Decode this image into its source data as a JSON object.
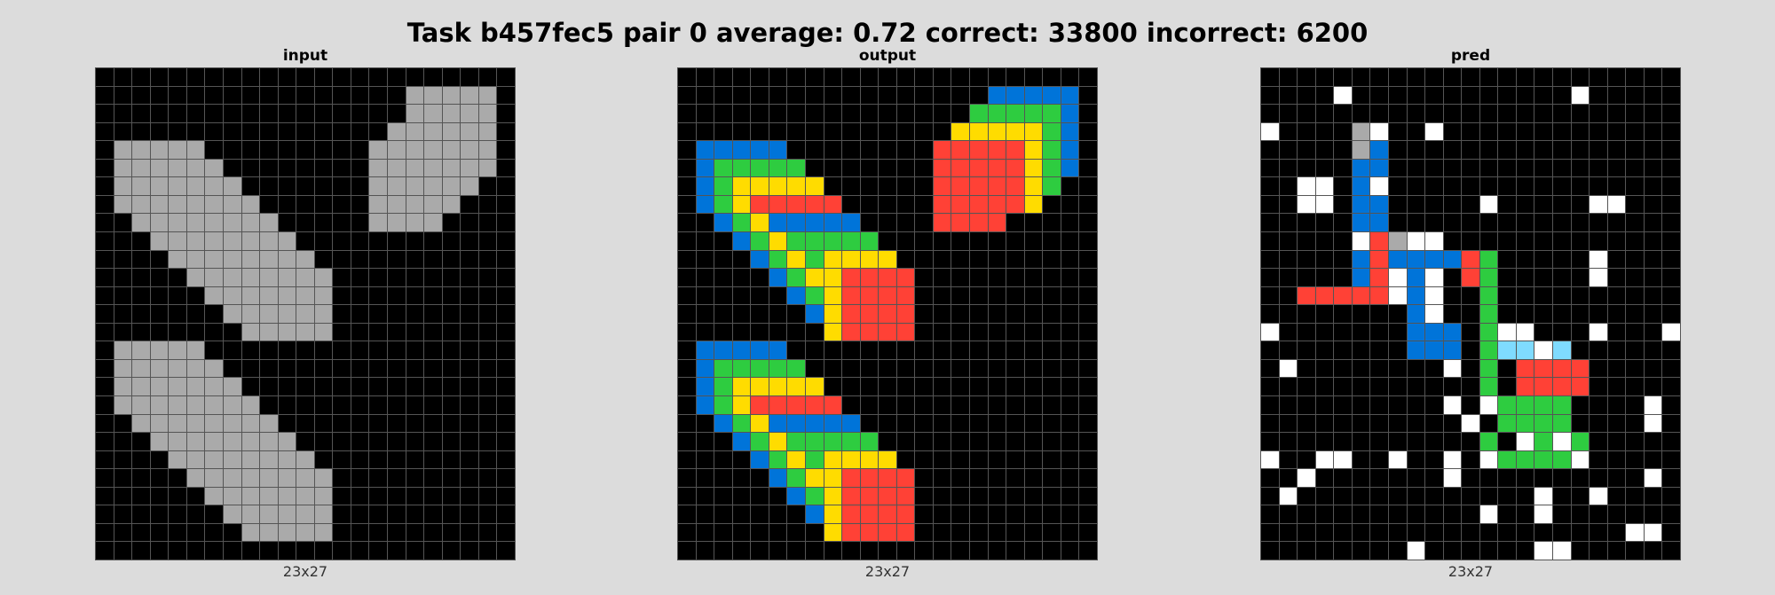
{
  "title": "Task b457fec5 pair 0 average: 0.72 correct: 33800 incorrect: 6200",
  "palette": {
    "0": "#000000",
    "1": "#0074D9",
    "2": "#FF4136",
    "3": "#2ECC40",
    "4": "#FFDC00",
    "5": "#AAAAAA",
    "6": "#F012BE",
    "7": "#FF851B",
    "8": "#7FDBFF",
    "9": "#FFFFFF",
    "gridline": "#555555",
    "background": "#dcdcdc"
  },
  "panels": [
    {
      "title": "input",
      "caption": "23x27",
      "rows": [
        "00000000000000000000000",
        "00000000000000000555550",
        "00000000000000000555550",
        "00000000000000005555550",
        "05555500000000055555550",
        "05555550000000055555550",
        "05555555000000055555500",
        "05555555500000055555000",
        "00555555550000055550000",
        "00055555555000000000000",
        "00005555555500000000000",
        "00000555555550000000000",
        "00000055555550000000000",
        "00000005555550000000000",
        "00000000555550000000000",
        "05555500000000000000000",
        "05555550000000000000000",
        "05555555000000000000000",
        "05555555500000000000000",
        "00555555550000000000000",
        "00055555555000000000000",
        "00005555555500000000000",
        "00000555555550000000000",
        "00000055555550000000000",
        "00000005555550000000000",
        "00000000555550000000000",
        "00000000000000000000000"
      ]
    },
    {
      "title": "output",
      "caption": "23x27",
      "rows": [
        "00000000000000000000000",
        "00000000000000000111110",
        "00000000000000003333310",
        "00000000000000044444310",
        "01111100000000222224310",
        "01333330000000222224310",
        "01344444000000222224300",
        "01342222200000222224000",
        "00134111110000222200000",
        "00013433333000000000000",
        "00001343444400000000000",
        "00000134422220000000000",
        "00000013422220000000000",
        "00000001422220000000000",
        "00000000422220000000000",
        "01111100000000000000000",
        "01333330000000000000000",
        "01344444000000000000000",
        "01342222200000000000000",
        "00134111110000000000000",
        "00013433333000000000000",
        "00001343444400000000000",
        "00000134422220000000000",
        "00000013422220000000000",
        "00000001422220000000000",
        "00000000422220000000000",
        "00000000000000000000000"
      ]
    },
    {
      "title": "pred",
      "caption": "23x27",
      "rows": [
        "00000000000000000000000",
        "00009000000000000900000",
        "00000000000000000000000",
        "90000590090000000000000",
        "00000510000000000000000",
        "00000110000000000000000",
        "00990190000000000000000",
        "00990110000090000099000",
        "00000110000000000000000",
        "00000925990000000000000",
        "00000121111230000090000",
        "00000129190230000090000",
        "00222229190030000000000",
        "00000000190030000000000",
        "90000000111039900090009",
        "00000000111038898000000",
        "09000000009030222200000",
        "00000000000030222200000",
        "00000000009093333000090",
        "00000000000903333000090",
        "00000000000030939300000",
        "90099009009093333900000",
        "00900000009000000000090",
        "09000000000000090090000",
        "00000000000090090000000",
        "00000000000000000000990",
        "00000000900000099000000"
      ]
    }
  ]
}
